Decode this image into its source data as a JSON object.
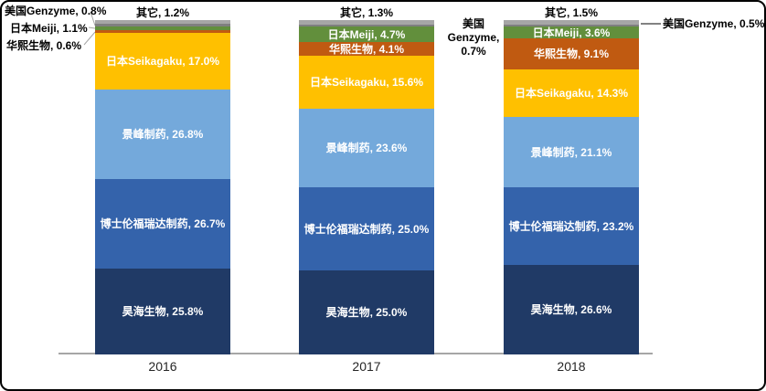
{
  "chart_data": {
    "type": "bar",
    "stacked": true,
    "value_unit": "%",
    "stack_order": "bottom-to-top",
    "legend": "none",
    "grid": false,
    "categories": [
      "2016",
      "2017",
      "2018"
    ],
    "series": [
      {
        "id": "haohai-bio",
        "name": "昊海生物",
        "color": "#203A66",
        "values": [
          25.8,
          25.0,
          26.6
        ]
      },
      {
        "id": "bausch-lomb-freda",
        "name": "博士伦福瑞达制药",
        "color": "#3463AB",
        "values": [
          26.7,
          25.0,
          23.2
        ]
      },
      {
        "id": "jingfeng-pharma",
        "name": "景峰制药",
        "color": "#74A9DB",
        "values": [
          26.8,
          23.6,
          21.1
        ]
      },
      {
        "id": "seikagaku",
        "name": "日本Seikagaku",
        "color": "#FFC000",
        "values": [
          17.0,
          15.6,
          14.3
        ]
      },
      {
        "id": "huaxi-bio",
        "name": "华熙生物",
        "color": "#C05A11",
        "values": [
          0.6,
          4.1,
          9.1
        ]
      },
      {
        "id": "meiji",
        "name": "日本Meiji",
        "color": "#628F3C",
        "values": [
          1.1,
          4.7,
          3.6
        ]
      },
      {
        "id": "genzyme",
        "name": "美国Genzyme",
        "color": "#7F7F7F",
        "values": [
          0.8,
          0.7,
          0.5
        ]
      },
      {
        "id": "others",
        "name": "其它",
        "color": "#A6A6A6",
        "values": [
          1.2,
          1.3,
          1.5
        ]
      }
    ],
    "data_label_format": "name, value%",
    "axis": {
      "baseline_color": "#A6A6A6"
    }
  }
}
